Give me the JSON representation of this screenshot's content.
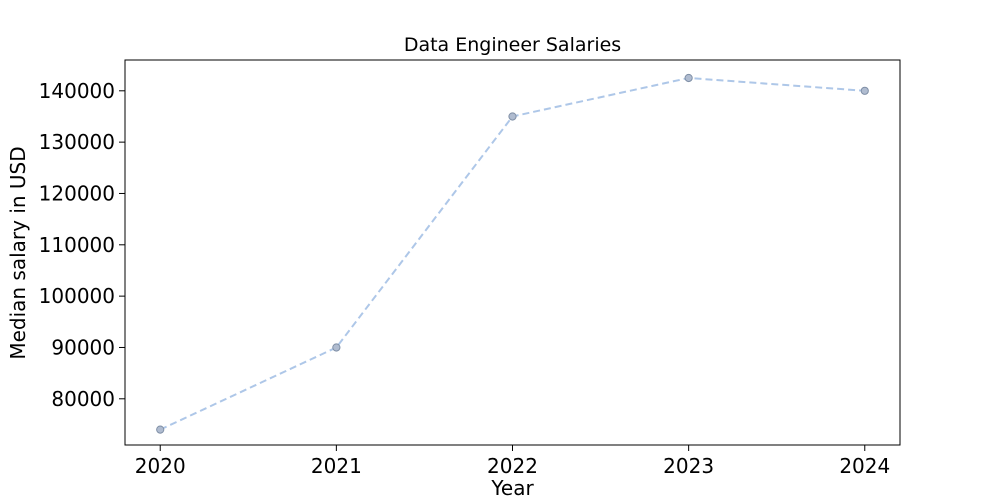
{
  "chart_data": {
    "type": "line",
    "title": "Data Engineer Salaries",
    "xlabel": "Year",
    "ylabel": "Median salary in USD",
    "x": [
      "2020",
      "2021",
      "2022",
      "2023",
      "2024"
    ],
    "series": [
      {
        "values": [
          74000,
          90000,
          135000,
          142500,
          140000
        ]
      }
    ],
    "xlim": [
      2019.8,
      2024.2
    ],
    "ylim": [
      71000,
      146000
    ],
    "yticks": [
      80000,
      90000,
      100000,
      110000,
      120000,
      130000,
      140000
    ],
    "grid": false,
    "line_style": "dashed",
    "line_color": "#aec7e8",
    "marker_fill": "#b0bcd0",
    "marker_edge": "#7f8fa6"
  }
}
